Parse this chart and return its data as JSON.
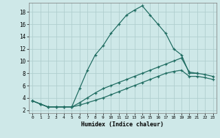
{
  "title": "",
  "xlabel": "Humidex (Indice chaleur)",
  "ylabel": "",
  "bg_color": "#cee8e8",
  "line_color": "#1e6b60",
  "grid_color": "#b0cece",
  "x_ticks": [
    0,
    1,
    2,
    3,
    4,
    5,
    6,
    7,
    8,
    9,
    10,
    11,
    12,
    13,
    14,
    15,
    16,
    17,
    18,
    19,
    20,
    21,
    22,
    23
  ],
  "y_ticks": [
    2,
    4,
    6,
    8,
    10,
    12,
    14,
    16,
    18
  ],
  "xlim": [
    -0.5,
    23.5
  ],
  "ylim": [
    1.5,
    19.5
  ],
  "series": [
    {
      "x": [
        0,
        1,
        2,
        3,
        4,
        5,
        6,
        7,
        8,
        9,
        10,
        11,
        12,
        13,
        14,
        15,
        16,
        17,
        18,
        19,
        20,
        21
      ],
      "y": [
        3.5,
        3.0,
        2.5,
        2.5,
        2.5,
        2.5,
        5.5,
        8.5,
        11.0,
        12.5,
        14.5,
        16.0,
        17.5,
        18.3,
        19.0,
        17.5,
        16.0,
        14.5,
        12.0,
        11.0,
        8.0,
        8.0
      ]
    },
    {
      "x": [
        0,
        1,
        2,
        3,
        4,
        5,
        6,
        7,
        8,
        9,
        10,
        11,
        12,
        13,
        14,
        15,
        16,
        17,
        18,
        19,
        20,
        21,
        22,
        23
      ],
      "y": [
        3.5,
        3.0,
        2.5,
        2.5,
        2.5,
        2.5,
        3.2,
        4.0,
        4.8,
        5.5,
        6.0,
        6.5,
        7.0,
        7.5,
        8.0,
        8.5,
        9.0,
        9.5,
        10.0,
        10.5,
        8.2,
        8.0,
        7.8,
        7.5
      ]
    },
    {
      "x": [
        0,
        1,
        2,
        3,
        4,
        5,
        6,
        7,
        8,
        9,
        10,
        11,
        12,
        13,
        14,
        15,
        16,
        17,
        18,
        19,
        20,
        21,
        22,
        23
      ],
      "y": [
        3.5,
        3.0,
        2.5,
        2.5,
        2.5,
        2.5,
        2.8,
        3.2,
        3.6,
        4.0,
        4.5,
        5.0,
        5.5,
        6.0,
        6.5,
        7.0,
        7.5,
        8.0,
        8.3,
        8.5,
        7.5,
        7.5,
        7.3,
        7.0
      ]
    }
  ]
}
